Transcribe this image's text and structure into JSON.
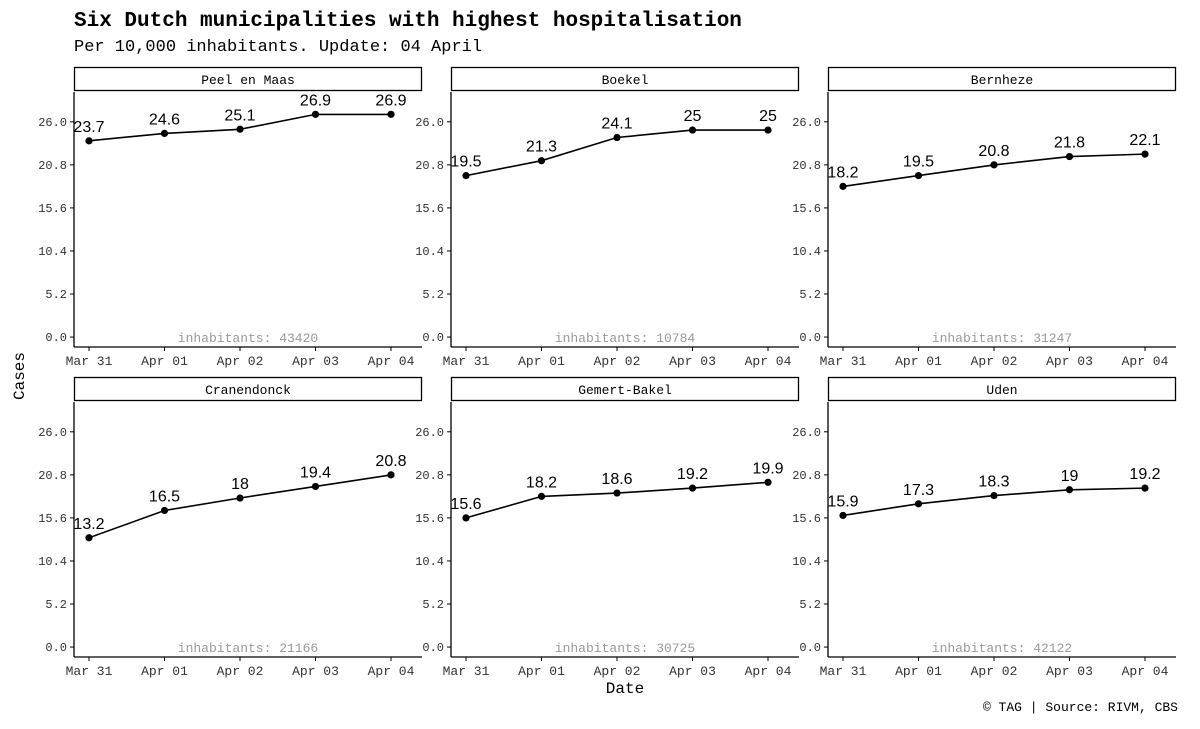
{
  "header": {
    "title": "Six Dutch municipalities with highest hospitalisation",
    "subtitle": "Per 10,000 inhabitants. Update: 04 April"
  },
  "caption": "© TAG | Source: RIVM, CBS",
  "chart_data": {
    "type": "line",
    "xlabel": "Date",
    "ylabel": "Cases",
    "x": [
      "Mar 31",
      "Apr 01",
      "Apr 02",
      "Apr 03",
      "Apr 04"
    ],
    "y_ticks": [
      "0.0",
      "5.2",
      "10.4",
      "15.6",
      "20.8",
      "26.0"
    ],
    "y_tick_values": [
      0,
      5.2,
      10.4,
      15.6,
      20.8,
      26.0
    ],
    "ylim": [
      -1.2,
      29.6
    ],
    "grid": false,
    "facets": [
      {
        "name": "Peel en Maas",
        "inhabitants_label": "inhabitants: 43420",
        "values": [
          23.7,
          24.6,
          25.1,
          26.9,
          26.9
        ]
      },
      {
        "name": "Boekel",
        "inhabitants_label": "inhabitants: 10784",
        "values": [
          19.5,
          21.3,
          24.1,
          25,
          25
        ]
      },
      {
        "name": "Bernheze",
        "inhabitants_label": "inhabitants: 31247",
        "values": [
          18.2,
          19.5,
          20.8,
          21.8,
          22.1
        ]
      },
      {
        "name": "Cranendonck",
        "inhabitants_label": "inhabitants: 21166",
        "values": [
          13.2,
          16.5,
          18,
          19.4,
          20.8
        ]
      },
      {
        "name": "Gemert-Bakel",
        "inhabitants_label": "inhabitants: 30725",
        "values": [
          15.6,
          18.2,
          18.6,
          19.2,
          19.9
        ]
      },
      {
        "name": "Uden",
        "inhabitants_label": "inhabitants: 42122",
        "values": [
          15.9,
          17.3,
          18.3,
          19,
          19.2
        ]
      }
    ]
  }
}
